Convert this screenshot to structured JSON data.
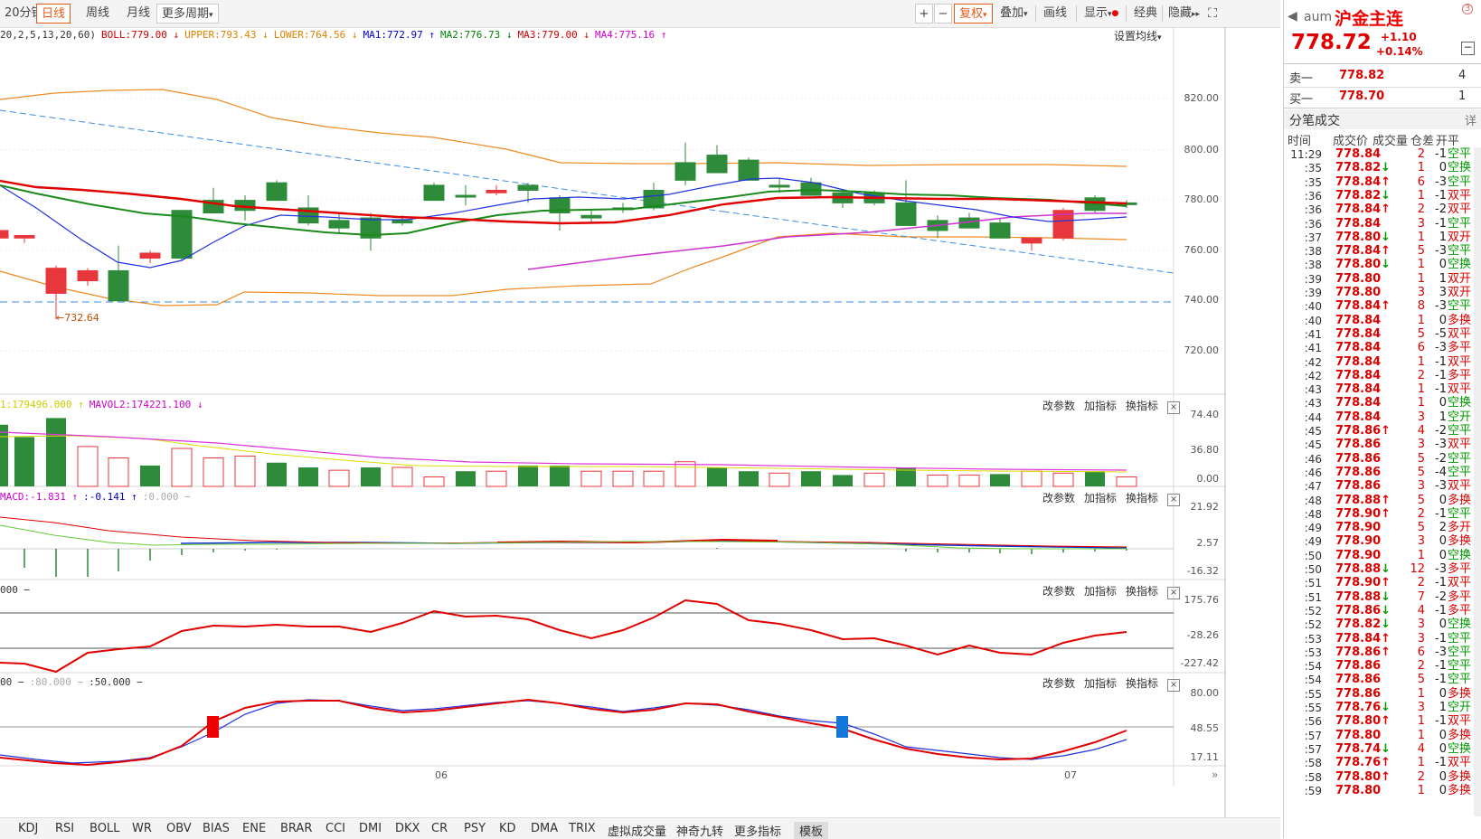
{
  "toolbar": {
    "periods": [
      "20分钟",
      "日线",
      "周线",
      "月线",
      "更多周期"
    ],
    "active_period": "日线",
    "zoom_in": "+",
    "zoom_out": "−",
    "right_buttons": [
      "复权",
      "叠加",
      "画线",
      "显示",
      "经典",
      "隐藏"
    ]
  },
  "main_legend": {
    "params": "20,2,5,13,20,60)",
    "items": [
      {
        "text": "BOLL:779.00",
        "color": "#d00000",
        "arrow": "↓"
      },
      {
        "text": "UPPER:793.43",
        "color": "#e08000",
        "arrow": "↓"
      },
      {
        "text": "LOWER:764.56",
        "color": "#e08000",
        "arrow": "↓"
      },
      {
        "text": "MA1:772.97",
        "color": "#0000cc",
        "arrow": "↑"
      },
      {
        "text": "MA2:776.73",
        "color": "#008000",
        "arrow": "↓"
      },
      {
        "text": "MA3:779.00",
        "color": "#d00000",
        "arrow": "↓"
      },
      {
        "text": "MA4:775.16",
        "color": "#cc00cc",
        "arrow": "↑"
      }
    ],
    "set_ma": "设置均线"
  },
  "main_axis": [
    "820.00",
    "800.00",
    "780.00",
    "760.00",
    "740.00",
    "720.00"
  ],
  "low_marker": "732.64",
  "vol_legend": {
    "items": [
      {
        "text": "1:179496.000",
        "color": "#cccc00",
        "arrow": "↑"
      },
      {
        "text": "MAVOL2:174221.100",
        "color": "#cc00cc",
        "arrow": "↓"
      }
    ]
  },
  "vol_axis": [
    "74.40",
    "36.80",
    "0.00"
  ],
  "macd_legend": {
    "items": [
      {
        "text": "MACD:-1.831",
        "color": "#cc00cc",
        "arrow": "↑"
      },
      {
        "text": ":-0.141",
        "color": "#0000cc",
        "arrow": "↑"
      },
      {
        "text": ":0.000",
        "color": "#aaaaaa",
        "arrow": "−"
      }
    ]
  },
  "macd_axis": [
    "21.92",
    "2.57",
    "-16.32"
  ],
  "cci_legend": {
    "items": [
      {
        "text": "000",
        "color": "#333333",
        "arrow": "−"
      }
    ]
  },
  "cci_axis": [
    "175.76",
    "-28.26",
    "-227.42"
  ],
  "kd_legend": {
    "items": [
      {
        "text": "00",
        "color": "#333333",
        "arrow": "−"
      },
      {
        "text": ":80.000",
        "color": "#aaaaaa",
        "arrow": "−"
      },
      {
        "text": ":50.000",
        "color": "#333333",
        "arrow": "−"
      }
    ]
  },
  "kd_axis": [
    "80.00",
    "48.55",
    "17.11"
  ],
  "panel_buttons": [
    "改参数",
    "加指标",
    "换指标"
  ],
  "x_labels": [
    "06",
    "07"
  ],
  "bottom_tabs": [
    "KDJ",
    "RSI",
    "BOLL",
    "WR",
    "OBV",
    "BIAS",
    "ENE",
    "BRAR",
    "CCI",
    "DMI",
    "DKX",
    "CR",
    "PSY",
    "KD",
    "DMA",
    "TRIX",
    "虚拟成交量",
    "神奇九转",
    "更多指标",
    "模板"
  ],
  "selected_tab": "模板",
  "quote": {
    "code": "aum",
    "name": "沪金主连",
    "price": "778.72",
    "change": "+1.10",
    "change_pct": "+0.14%",
    "sell_label": "卖一",
    "sell_price": "778.82",
    "sell_vol": "4",
    "buy_label": "买一",
    "buy_price": "778.70",
    "buy_vol": "1",
    "ticks_title": "分笔成交",
    "detail": "详",
    "headers": [
      "时间",
      "成交价",
      "成交量",
      "仓差",
      "开平"
    ]
  },
  "ticks": [
    [
      "11:29",
      "778.84",
      "",
      "2",
      "-1",
      "空平"
    ],
    [
      ":35",
      "778.82",
      "↓",
      "1",
      "0",
      "空换"
    ],
    [
      ":35",
      "778.84",
      "↑",
      "6",
      "-3",
      "空平"
    ],
    [
      ":36",
      "778.82",
      "↓",
      "1",
      "-1",
      "双平"
    ],
    [
      ":36",
      "778.84",
      "↑",
      "2",
      "-2",
      "双平"
    ],
    [
      ":36",
      "778.84",
      "",
      "3",
      "-1",
      "空平"
    ],
    [
      ":37",
      "778.80",
      "↓",
      "1",
      "1",
      "双开"
    ],
    [
      ":38",
      "778.84",
      "↑",
      "5",
      "-3",
      "空平"
    ],
    [
      ":38",
      "778.80",
      "↓",
      "1",
      "0",
      "空换"
    ],
    [
      ":39",
      "778.80",
      "",
      "1",
      "1",
      "双开"
    ],
    [
      ":39",
      "778.80",
      "",
      "3",
      "3",
      "双开"
    ],
    [
      ":40",
      "778.84",
      "↑",
      "8",
      "-3",
      "空平"
    ],
    [
      ":40",
      "778.84",
      "",
      "1",
      "0",
      "多换"
    ],
    [
      ":41",
      "778.84",
      "",
      "5",
      "-5",
      "双平"
    ],
    [
      ":41",
      "778.84",
      "",
      "6",
      "-3",
      "多平"
    ],
    [
      ":42",
      "778.84",
      "",
      "1",
      "-1",
      "双平"
    ],
    [
      ":42",
      "778.84",
      "",
      "2",
      "-1",
      "多平"
    ],
    [
      ":43",
      "778.84",
      "",
      "1",
      "-1",
      "双平"
    ],
    [
      ":43",
      "778.84",
      "",
      "1",
      "0",
      "空换"
    ],
    [
      ":44",
      "778.84",
      "",
      "3",
      "1",
      "空开"
    ],
    [
      ":45",
      "778.86",
      "↑",
      "4",
      "-2",
      "空平"
    ],
    [
      ":45",
      "778.86",
      "",
      "3",
      "-3",
      "双平"
    ],
    [
      ":46",
      "778.86",
      "",
      "5",
      "-2",
      "空平"
    ],
    [
      ":46",
      "778.86",
      "",
      "5",
      "-4",
      "空平"
    ],
    [
      ":47",
      "778.86",
      "",
      "3",
      "-3",
      "双平"
    ],
    [
      ":48",
      "778.88",
      "↑",
      "5",
      "0",
      "多换"
    ],
    [
      ":48",
      "778.90",
      "↑",
      "2",
      "-1",
      "空平"
    ],
    [
      ":49",
      "778.90",
      "",
      "5",
      "2",
      "多开"
    ],
    [
      ":49",
      "778.90",
      "",
      "3",
      "0",
      "多换"
    ],
    [
      ":50",
      "778.90",
      "",
      "1",
      "0",
      "空换"
    ],
    [
      ":50",
      "778.88",
      "↓",
      "12",
      "-3",
      "多平"
    ],
    [
      ":51",
      "778.90",
      "↑",
      "2",
      "-1",
      "双平"
    ],
    [
      ":51",
      "778.88",
      "↓",
      "7",
      "-2",
      "多平"
    ],
    [
      ":52",
      "778.86",
      "↓",
      "4",
      "-1",
      "多平"
    ],
    [
      ":52",
      "778.82",
      "↓",
      "3",
      "0",
      "空换"
    ],
    [
      ":53",
      "778.84",
      "↑",
      "3",
      "-1",
      "空平"
    ],
    [
      ":53",
      "778.86",
      "↑",
      "6",
      "-3",
      "空平"
    ],
    [
      ":54",
      "778.86",
      "",
      "2",
      "-1",
      "空平"
    ],
    [
      ":54",
      "778.86",
      "",
      "5",
      "-1",
      "空平"
    ],
    [
      ":55",
      "778.86",
      "",
      "1",
      "0",
      "多换"
    ],
    [
      ":55",
      "778.76",
      "↓",
      "3",
      "1",
      "空开"
    ],
    [
      ":56",
      "778.80",
      "↑",
      "1",
      "-1",
      "双平"
    ],
    [
      ":57",
      "778.80",
      "",
      "1",
      "0",
      "多换"
    ],
    [
      ":57",
      "778.74",
      "↓",
      "4",
      "0",
      "空换"
    ],
    [
      ":58",
      "778.76",
      "↑",
      "1",
      "-1",
      "双平"
    ],
    [
      ":58",
      "778.80",
      "↑",
      "2",
      "0",
      "多换"
    ],
    [
      ":59",
      "778.80",
      "",
      "1",
      "0",
      "多换"
    ]
  ]
}
